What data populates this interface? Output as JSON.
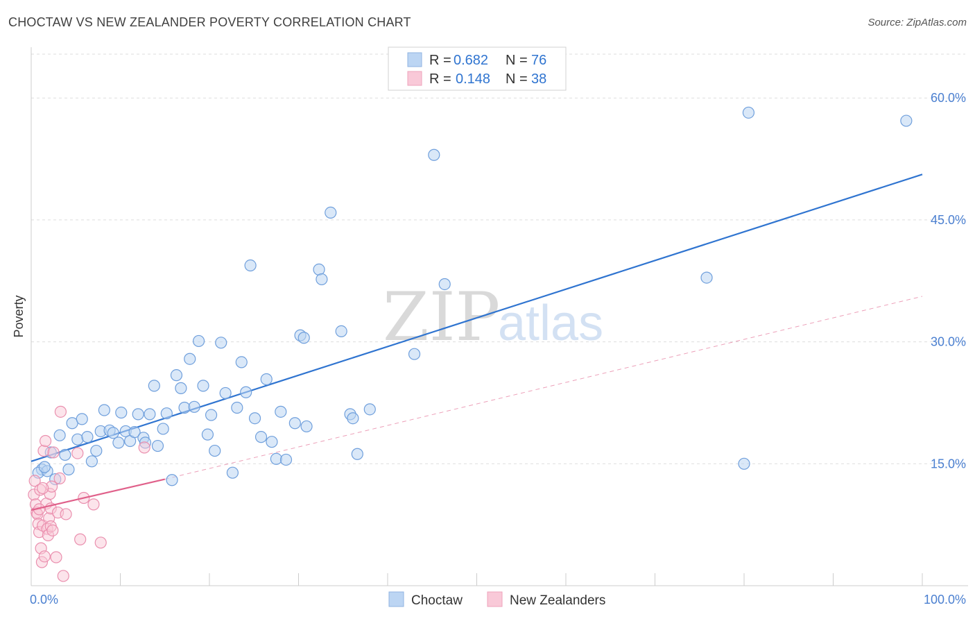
{
  "header": {
    "title": "CHOCTAW VS NEW ZEALANDER POVERTY CORRELATION CHART",
    "source": "Source: ZipAtlas.com"
  },
  "watermark": {
    "zip": "ZIP",
    "atlas": "atlas"
  },
  "chart_data": {
    "type": "scatter",
    "title": "CHOCTAW VS NEW ZEALANDER POVERTY CORRELATION CHART",
    "xlabel": "",
    "ylabel": "Poverty",
    "xlim": [
      0,
      100
    ],
    "ylim": [
      0,
      60
    ],
    "x_tick_labels": [
      "0.0%",
      "100.0%"
    ],
    "y_ticks": [
      15,
      30,
      45,
      60
    ],
    "y_tick_labels": [
      "15.0%",
      "30.0%",
      "45.0%",
      "60.0%"
    ],
    "grid": true,
    "legend_placement": "top-center",
    "colors": {
      "choctaw": "#a9c9f0",
      "choctaw_line": "#2f74d0",
      "nz": "#f6b8cc",
      "nz_line": "#e0608a",
      "tick": "#4a7fd0"
    },
    "legend": [
      {
        "r_label": "R =",
        "r_value": "0.682",
        "n_label": "N =",
        "n_value": "76"
      },
      {
        "r_label": "R =",
        "r_value": "0.148",
        "n_label": "N =",
        "n_value": "38"
      }
    ],
    "series": [
      {
        "name": "Choctaw",
        "color": "#a9c9f0",
        "trend": {
          "x": [
            0,
            100
          ],
          "y": [
            15.3,
            50.6
          ]
        },
        "points": [
          [
            1.2,
            14.3
          ],
          [
            0.8,
            13.9
          ],
          [
            1.8,
            14.1
          ],
          [
            1.5,
            14.6
          ],
          [
            2.2,
            16.4
          ],
          [
            2.7,
            13.1
          ],
          [
            3.2,
            18.5
          ],
          [
            3.8,
            16.1
          ],
          [
            4.2,
            14.3
          ],
          [
            4.6,
            20.0
          ],
          [
            5.2,
            18.0
          ],
          [
            5.7,
            20.5
          ],
          [
            6.3,
            18.3
          ],
          [
            6.8,
            15.3
          ],
          [
            7.3,
            16.6
          ],
          [
            7.8,
            19.0
          ],
          [
            8.2,
            21.6
          ],
          [
            8.8,
            19.1
          ],
          [
            9.2,
            18.8
          ],
          [
            9.8,
            17.6
          ],
          [
            10.1,
            21.3
          ],
          [
            10.6,
            19.0
          ],
          [
            11.1,
            17.8
          ],
          [
            11.6,
            18.9
          ],
          [
            12.0,
            21.1
          ],
          [
            12.6,
            18.2
          ],
          [
            12.8,
            17.6
          ],
          [
            13.3,
            21.1
          ],
          [
            13.8,
            24.6
          ],
          [
            14.2,
            17.2
          ],
          [
            14.8,
            19.3
          ],
          [
            15.2,
            21.2
          ],
          [
            15.8,
            13.0
          ],
          [
            16.3,
            25.9
          ],
          [
            16.8,
            24.3
          ],
          [
            17.2,
            21.9
          ],
          [
            17.8,
            27.9
          ],
          [
            18.3,
            22.0
          ],
          [
            18.8,
            30.1
          ],
          [
            19.3,
            24.6
          ],
          [
            19.8,
            18.6
          ],
          [
            20.2,
            21.0
          ],
          [
            20.6,
            16.6
          ],
          [
            21.3,
            29.9
          ],
          [
            21.8,
            23.7
          ],
          [
            22.6,
            13.9
          ],
          [
            23.1,
            21.9
          ],
          [
            23.6,
            27.5
          ],
          [
            24.1,
            23.8
          ],
          [
            24.6,
            39.4
          ],
          [
            25.1,
            20.6
          ],
          [
            25.8,
            18.3
          ],
          [
            26.4,
            25.4
          ],
          [
            27.0,
            17.7
          ],
          [
            27.5,
            15.6
          ],
          [
            28.0,
            21.4
          ],
          [
            28.6,
            15.5
          ],
          [
            29.6,
            20.0
          ],
          [
            30.2,
            30.8
          ],
          [
            30.6,
            30.5
          ],
          [
            30.9,
            19.6
          ],
          [
            32.3,
            38.9
          ],
          [
            32.6,
            37.7
          ],
          [
            33.6,
            45.9
          ],
          [
            34.8,
            31.3
          ],
          [
            35.8,
            21.1
          ],
          [
            36.1,
            20.6
          ],
          [
            36.6,
            16.2
          ],
          [
            38.0,
            21.7
          ],
          [
            43.0,
            28.5
          ],
          [
            45.2,
            53.0
          ],
          [
            46.4,
            37.1
          ],
          [
            75.8,
            37.9
          ],
          [
            80.0,
            15.0
          ],
          [
            80.5,
            58.2
          ],
          [
            98.2,
            57.2
          ]
        ]
      },
      {
        "name": "New Zealanders",
        "color": "#f6b8cc",
        "trend": {
          "x": [
            0,
            15
          ],
          "y": [
            9.3,
            13.1
          ]
        },
        "trend_ext": {
          "x": [
            15,
            100
          ],
          "y": [
            13.1,
            35.6
          ]
        },
        "points": [
          [
            0.3,
            11.2
          ],
          [
            0.4,
            12.9
          ],
          [
            0.5,
            10.0
          ],
          [
            0.6,
            9.0
          ],
          [
            0.7,
            8.8
          ],
          [
            0.8,
            7.6
          ],
          [
            0.9,
            6.6
          ],
          [
            1.0,
            11.8
          ],
          [
            1.1,
            4.6
          ],
          [
            1.2,
            2.9
          ],
          [
            1.3,
            7.4
          ],
          [
            1.4,
            16.6
          ],
          [
            1.5,
            3.6
          ],
          [
            1.6,
            17.8
          ],
          [
            1.7,
            10.1
          ],
          [
            1.8,
            7.0
          ],
          [
            1.9,
            6.2
          ],
          [
            2.0,
            8.3
          ],
          [
            2.1,
            11.3
          ],
          [
            2.2,
            7.3
          ],
          [
            2.3,
            12.2
          ],
          [
            2.4,
            6.8
          ],
          [
            2.5,
            16.4
          ],
          [
            2.2,
            9.5
          ],
          [
            3.0,
            9.0
          ],
          [
            3.2,
            13.2
          ],
          [
            2.8,
            3.5
          ],
          [
            3.3,
            21.4
          ],
          [
            3.6,
            1.2
          ],
          [
            3.9,
            8.8
          ],
          [
            5.2,
            16.3
          ],
          [
            5.5,
            5.7
          ],
          [
            5.9,
            10.8
          ],
          [
            7.0,
            10.0
          ],
          [
            7.8,
            5.3
          ],
          [
            12.7,
            17.0
          ],
          [
            0.9,
            9.4
          ],
          [
            1.3,
            12.0
          ]
        ]
      }
    ],
    "legend_bottom": [
      "Choctaw",
      "New Zealanders"
    ]
  }
}
